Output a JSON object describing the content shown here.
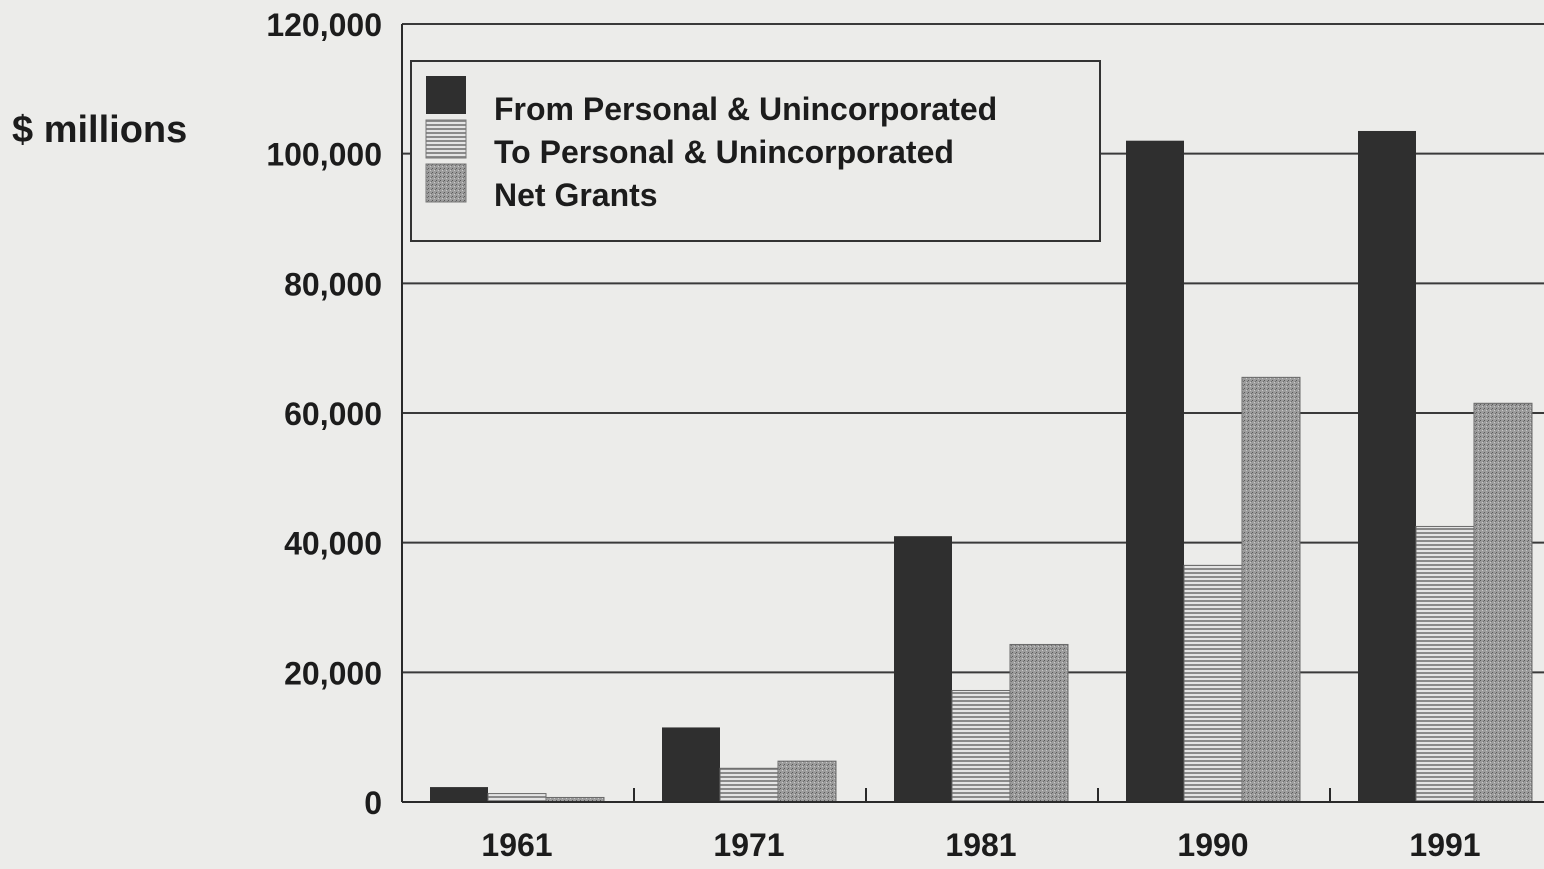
{
  "chart_data": {
    "type": "bar",
    "ylabel": "$ millions",
    "categories": [
      "1961",
      "1971",
      "1981",
      "1990",
      "1991"
    ],
    "ylim": [
      0,
      120000
    ],
    "yticks": [
      0,
      20000,
      40000,
      60000,
      80000,
      100000,
      120000
    ],
    "ytick_labels": [
      "0",
      "20,000",
      "40,000",
      "60,000",
      "80,000",
      "100,000",
      "120,000"
    ],
    "grid": true,
    "legend_position": "top-left",
    "series": [
      {
        "name": "From Personal & Unincorporated",
        "values": [
          2300,
          11500,
          41000,
          102000,
          103500
        ],
        "color": "#2f2f2f",
        "pattern": "solid"
      },
      {
        "name": "To Personal & Unincorporated",
        "values": [
          1300,
          5200,
          17200,
          36500,
          42500
        ],
        "color": "#d2d2d2",
        "pattern": "horizontal-lines"
      },
      {
        "name": "Net Grants",
        "values": [
          700,
          6300,
          24300,
          65500,
          61500
        ],
        "color": "#8d8d8d",
        "pattern": "stipple"
      }
    ]
  }
}
